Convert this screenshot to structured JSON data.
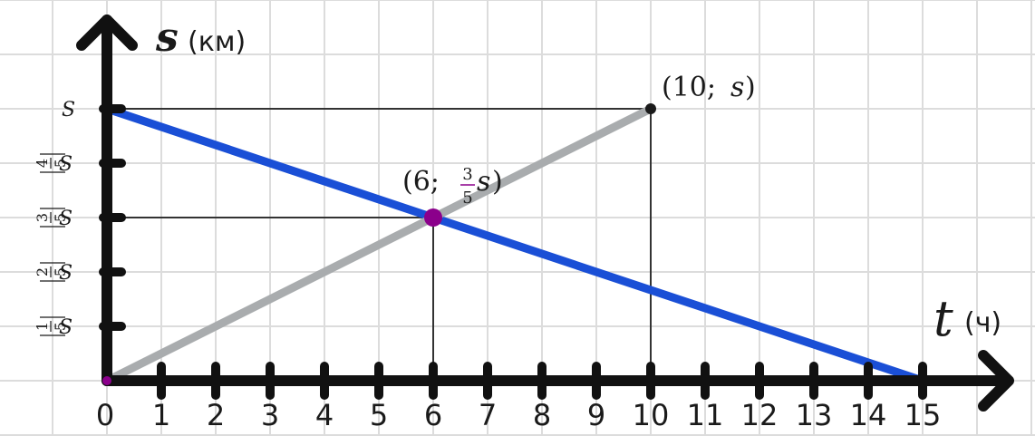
{
  "chart_data": {
    "type": "line",
    "title": "",
    "xlabel": {
      "symbol": "t",
      "unit": "(ч)"
    },
    "ylabel": {
      "symbol": "s",
      "unit": "(км)"
    },
    "xlim": [
      0,
      15
    ],
    "ylim": [
      0,
      1
    ],
    "grid": true,
    "x_ticks": [
      "0",
      "1",
      "2",
      "3",
      "4",
      "5",
      "6",
      "7",
      "8",
      "9",
      "10",
      "11",
      "12",
      "13",
      "14",
      "15"
    ],
    "y_ticks": [
      {
        "value": 0.2,
        "num": "1",
        "den": "5",
        "var": "S"
      },
      {
        "value": 0.4,
        "num": "2",
        "den": "5",
        "var": "S"
      },
      {
        "value": 0.6,
        "num": "3",
        "den": "5",
        "var": "S"
      },
      {
        "value": 0.8,
        "num": "4",
        "den": "5",
        "var": "S"
      },
      {
        "value": 1.0,
        "num": "",
        "den": "",
        "var": "S"
      }
    ],
    "series": [
      {
        "x": [
          0,
          15
        ],
        "y": [
          1,
          0
        ],
        "color": "#1a4fd6"
      },
      {
        "x": [
          0,
          10
        ],
        "y": [
          0,
          1
        ],
        "color": "#a9acae"
      }
    ],
    "guides": [
      {
        "from": [
          0,
          1
        ],
        "to": [
          10,
          1
        ]
      },
      {
        "from": [
          10,
          1
        ],
        "to": [
          10,
          0
        ]
      },
      {
        "from": [
          0,
          0.6
        ],
        "to": [
          6,
          0.6
        ]
      },
      {
        "from": [
          6,
          0.6
        ],
        "to": [
          6,
          0
        ]
      }
    ],
    "annotations": [
      {
        "x": 10,
        "y": 1,
        "text_pre": "(10; ",
        "text_var": "s",
        "text_post": ")",
        "color": "#1a1a1a"
      },
      {
        "x": 6,
        "y": 0.6,
        "text_pre": "(6; ",
        "num": "3",
        "den": "5",
        "text_var": "s",
        "text_post": ")",
        "color": "#8b008b"
      }
    ]
  }
}
